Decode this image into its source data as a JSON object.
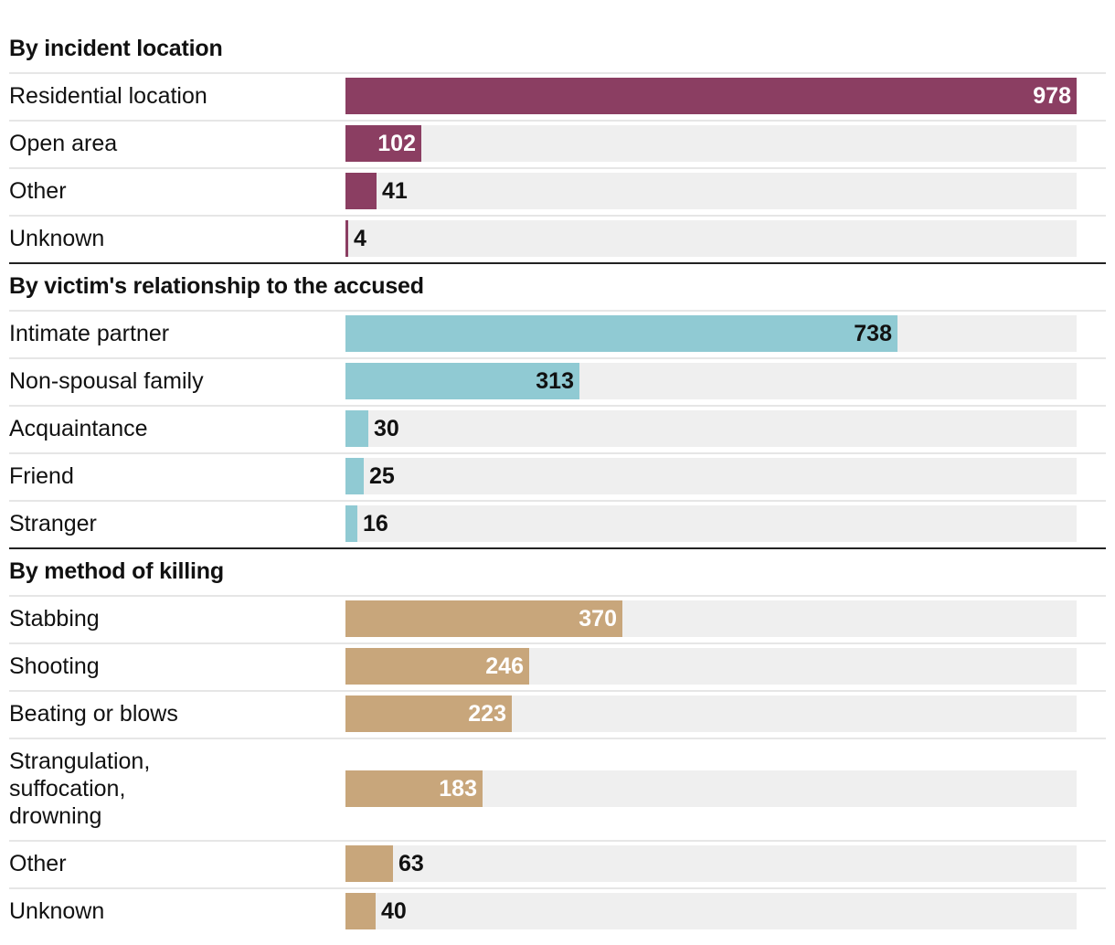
{
  "chart_data": {
    "type": "bar",
    "orientation": "horizontal",
    "scale_max": 978,
    "groups": [
      {
        "title": "By incident location",
        "color": "#8b3e62",
        "label_color": "#ffffff",
        "categories": [
          "Residential location",
          "Open area",
          "Other",
          "Unknown"
        ],
        "values": [
          978,
          102,
          41,
          4
        ]
      },
      {
        "title": "By victim's relationship to the accused",
        "color": "#90cad3",
        "label_color": "#111111",
        "categories": [
          "Intimate partner",
          "Non-spousal family",
          "Acquaintance",
          "Friend",
          "Stranger"
        ],
        "values": [
          738,
          313,
          30,
          25,
          16
        ]
      },
      {
        "title": "By method of killing",
        "color": "#c8a67b",
        "label_color": "#ffffff",
        "categories": [
          "Stabbing",
          "Shooting",
          "Beating or blows",
          "Strangulation,\nsuffocation,\ndrowning",
          "Other",
          "Unknown"
        ],
        "values": [
          370,
          246,
          223,
          183,
          63,
          40
        ]
      }
    ]
  }
}
